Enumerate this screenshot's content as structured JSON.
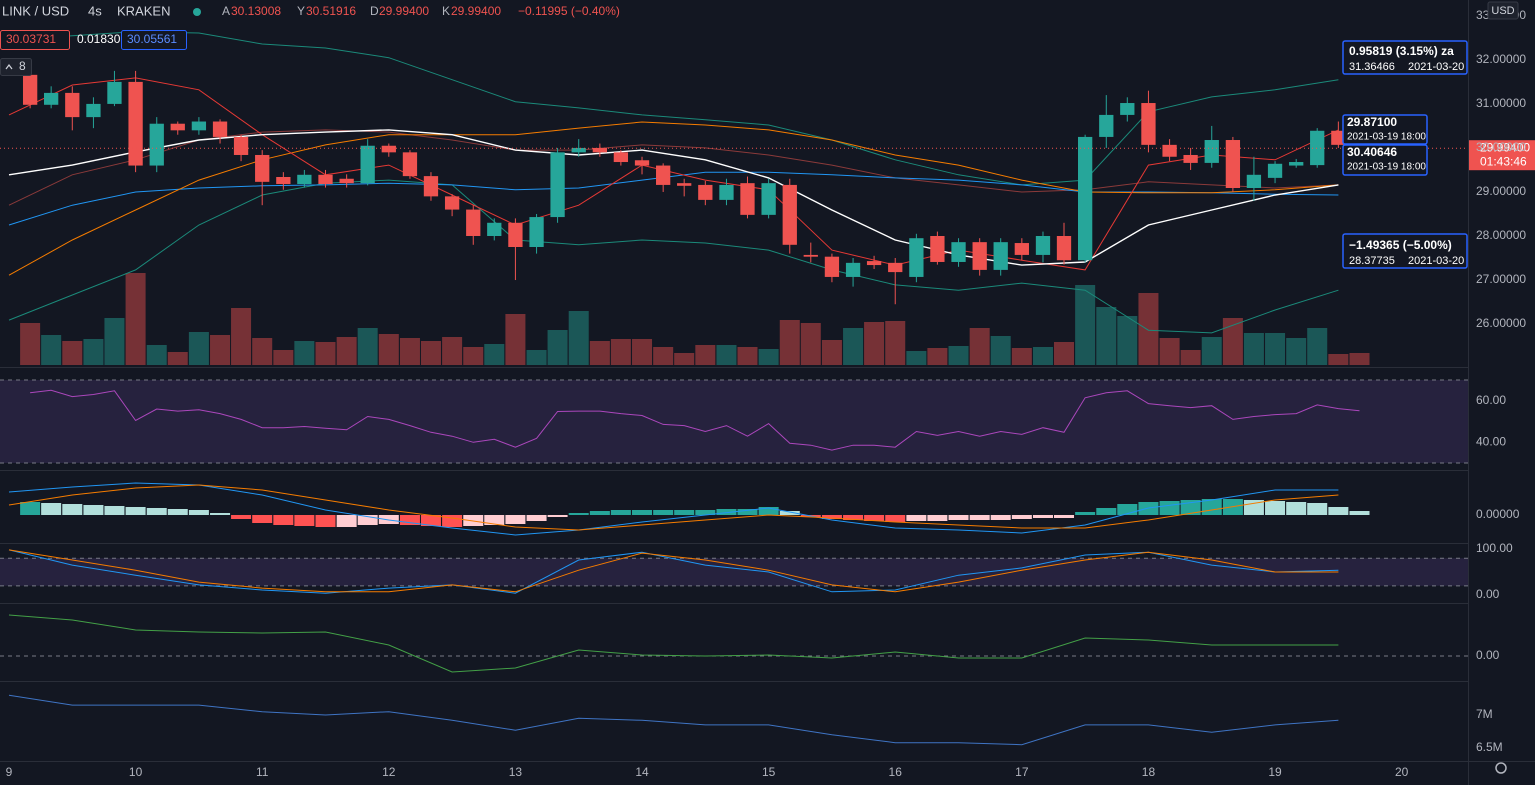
{
  "header": {
    "symbol": "LINK / USD",
    "interval": "4s",
    "exchange": "KRAKEN",
    "ohlc": [
      {
        "key": "A",
        "value": "30.13008"
      },
      {
        "key": "Y",
        "value": "30.51916"
      },
      {
        "key": "D",
        "value": "29.99400"
      },
      {
        "key": "K",
        "value": "29.99400"
      }
    ],
    "change": "−0.11995 (−0.40%)",
    "indicator": [
      "30.03731",
      "0.01830",
      "30.05561"
    ],
    "count": "8",
    "currency": "USD"
  },
  "measures": [
    {
      "lines": [
        "0.95819 (3.15%) za",
        "31.36466",
        "2021-03-20"
      ]
    },
    {
      "lines": [
        "29.87100",
        "2021-03-19 18:00"
      ]
    },
    {
      "lines": [
        "30.40646",
        "2021-03-19 18:00"
      ]
    },
    {
      "lines": [
        "−1.49365 (−5.00%)",
        "28.37735",
        "2021-03-20"
      ]
    }
  ],
  "chart_data": [
    {
      "type": "candlestick",
      "x": [
        9.167,
        9.333,
        9.5,
        9.667,
        9.833,
        10,
        10.167,
        10.333,
        10.5,
        10.667,
        10.833,
        11,
        11.167,
        11.333,
        11.5,
        11.667,
        11.833,
        12,
        12.167,
        12.333,
        12.5,
        12.667,
        12.833,
        13,
        13.167,
        13.333,
        13.5,
        13.667,
        13.833,
        14,
        14.167,
        14.333,
        14.5,
        14.667,
        14.833,
        15,
        15.167,
        15.333,
        15.5,
        15.667,
        15.833,
        16,
        16.167,
        16.333,
        16.5,
        16.667,
        16.833,
        17,
        17.167,
        17.333,
        17.5,
        17.667,
        17.833,
        18,
        18.167,
        18.333,
        18.5,
        18.667,
        18.833,
        19,
        19.167,
        19.333,
        19.5,
        19.667
      ],
      "open": [
        31.66,
        30.98,
        31.25,
        30.7,
        31.0,
        31.5,
        29.6,
        30.55,
        30.4,
        30.6,
        30.25,
        29.84,
        29.34,
        29.18,
        29.39,
        29.3,
        29.2,
        30.05,
        29.9,
        29.36,
        28.9,
        28.6,
        28.0,
        28.3,
        27.75,
        28.43,
        29.9,
        30.0,
        29.9,
        29.72,
        29.6,
        29.2,
        29.16,
        28.82,
        29.2,
        28.48,
        29.16,
        27.57,
        27.53,
        27.07,
        27.43,
        27.39,
        27.07,
        28.0,
        27.41,
        27.86,
        27.23,
        27.84,
        27.57,
        28.0,
        27.45,
        30.25,
        30.75,
        31.02,
        30.07,
        29.84,
        29.66,
        30.18,
        29.09,
        29.32,
        29.6,
        29.61,
        30.39,
        30.07
      ],
      "high": [
        31.8,
        31.4,
        31.4,
        31.15,
        31.75,
        31.75,
        30.7,
        30.6,
        30.7,
        30.65,
        30.3,
        29.95,
        29.45,
        29.5,
        29.5,
        29.4,
        30.2,
        30.1,
        29.95,
        29.45,
        28.95,
        28.7,
        28.4,
        28.4,
        28.5,
        30.0,
        30.2,
        30.1,
        29.95,
        29.8,
        29.65,
        29.3,
        29.25,
        29.3,
        29.35,
        29.3,
        29.3,
        27.85,
        27.6,
        27.5,
        27.55,
        27.5,
        28.05,
        28.1,
        27.95,
        27.95,
        27.95,
        27.95,
        28.1,
        28.3,
        30.3,
        31.2,
        31.15,
        31.3,
        30.2,
        30.0,
        30.5,
        30.25,
        29.8,
        29.7,
        29.75,
        30.45,
        30.6,
        30.15
      ],
      "low": [
        30.9,
        30.9,
        30.4,
        30.45,
        30.95,
        29.45,
        29.45,
        30.3,
        30.3,
        30.1,
        29.7,
        28.7,
        29.05,
        29.1,
        29.1,
        29.1,
        29.15,
        29.8,
        29.3,
        28.8,
        28.45,
        27.8,
        27.9,
        27.0,
        27.6,
        28.3,
        29.8,
        29.8,
        29.6,
        29.4,
        29.0,
        28.9,
        28.7,
        28.7,
        28.4,
        28.4,
        27.6,
        27.4,
        26.95,
        26.85,
        27.25,
        26.45,
        26.95,
        27.35,
        27.3,
        27.1,
        27.1,
        27.45,
        27.4,
        27.35,
        27.4,
        30.0,
        30.6,
        29.9,
        29.7,
        29.5,
        29.55,
        29.0,
        28.8,
        29.2,
        29.55,
        29.55,
        30.0,
        29.9
      ],
      "close": [
        30.98,
        31.25,
        30.7,
        31.0,
        31.5,
        29.6,
        30.55,
        30.4,
        30.6,
        30.25,
        29.84,
        29.23,
        29.18,
        29.39,
        29.18,
        29.2,
        30.05,
        29.9,
        29.36,
        28.9,
        28.6,
        28.0,
        28.3,
        27.75,
        28.43,
        29.9,
        30.0,
        29.9,
        29.68,
        29.6,
        29.16,
        29.14,
        28.82,
        29.16,
        28.48,
        29.2,
        27.8,
        27.53,
        27.07,
        27.39,
        27.34,
        27.18,
        27.95,
        27.41,
        27.86,
        27.23,
        27.86,
        27.57,
        28.0,
        27.45,
        30.25,
        30.75,
        31.02,
        30.07,
        29.8,
        29.66,
        30.18,
        29.09,
        29.39,
        29.64,
        29.68,
        30.39,
        30.07,
        29.994
      ],
      "colors": {
        "up": "#26a69a",
        "down": "#ef5350"
      },
      "volume": {
        "values": [
          42,
          30,
          24,
          26,
          47,
          92,
          20,
          13,
          33,
          30,
          57,
          27,
          15,
          24,
          23,
          28,
          37,
          31,
          27,
          24,
          28,
          18,
          21,
          51,
          15,
          35,
          54,
          24,
          26,
          26,
          18,
          12,
          20,
          20,
          18,
          16,
          45,
          42,
          25,
          37,
          43,
          44,
          14,
          17,
          19,
          37,
          29,
          17,
          18,
          23,
          80,
          58,
          49,
          72,
          27,
          15,
          28,
          47,
          32,
          32,
          27,
          37,
          11,
          12
        ],
        "ylim": [
          0,
          365
        ]
      },
      "overlay": {
        "x": [
          9,
          9.5,
          10,
          10.5,
          11,
          11.5,
          12,
          12.5,
          13,
          13.5,
          14,
          14.5,
          15,
          15.5,
          16,
          16.5,
          17,
          17.5,
          18,
          18.5,
          19,
          19.5
        ],
        "series": [
          {
            "color": "#1b8a7a",
            "values": [
              32.45,
              32.55,
              32.64,
              32.61,
              32.36,
              32.27,
              32.05,
              31.55,
              31.05,
              30.91,
              30.75,
              30.64,
              30.52,
              30.18,
              29.73,
              29.39,
              29.16,
              29.27,
              30.82,
              31.16,
              31.32,
              31.55
            ]
          },
          {
            "color": "#1b8a7a",
            "values": [
              26.09,
              26.66,
              27.23,
              28.25,
              28.93,
              29.2,
              29.27,
              29.16,
              27.91,
              27.8,
              27.91,
              27.84,
              27.68,
              27.23,
              26.89,
              26.77,
              26.93,
              26.77,
              25.86,
              25.8,
              26.32,
              26.77
            ]
          },
          {
            "color": "#8b3a3a",
            "values": [
              28.7,
              29.39,
              29.73,
              30.18,
              30.36,
              30.41,
              30.36,
              30.18,
              29.95,
              29.95,
              30.07,
              30.0,
              29.84,
              29.61,
              29.32,
              29.16,
              29.0,
              29.05,
              29.23,
              29.16,
              29.09,
              29.16
            ]
          },
          {
            "color": "#2196f3",
            "values": [
              28.25,
              28.7,
              29.0,
              29.09,
              29.14,
              29.16,
              29.2,
              29.16,
              29.05,
              29.09,
              29.27,
              29.45,
              29.45,
              29.39,
              29.32,
              29.27,
              29.16,
              29.0,
              29.0,
              28.98,
              28.95,
              28.93
            ]
          },
          {
            "color": "#f57c00",
            "values": [
              27.11,
              27.91,
              28.59,
              29.27,
              29.73,
              30.07,
              30.3,
              30.3,
              30.3,
              30.45,
              30.59,
              30.52,
              30.41,
              30.18,
              29.84,
              29.61,
              29.27,
              29.0,
              28.98,
              28.98,
              29.05,
              29.16
            ]
          },
          {
            "color": "#e53935",
            "values": [
              30.75,
              31.43,
              31.59,
              31.32,
              30.3,
              29.39,
              29.61,
              28.93,
              28.25,
              28.7,
              29.61,
              29.27,
              29.05,
              27.68,
              27.34,
              27.68,
              27.45,
              27.23,
              29.61,
              29.84,
              29.73,
              30.41
            ]
          },
          {
            "color": "#ffffff",
            "values": [
              29.39,
              29.61,
              29.91,
              30.18,
              30.3,
              30.36,
              30.41,
              30.3,
              29.95,
              29.84,
              29.95,
              29.73,
              29.32,
              28.59,
              27.91,
              27.57,
              27.34,
              27.41,
              28.25,
              28.59,
              28.93,
              29.16
            ]
          }
        ]
      },
      "current": {
        "value": 29.994,
        "label": "29.99400",
        "countdown": "01:43:46",
        "color": "#ef5350"
      },
      "xlim": [
        8.929,
        20.524
      ],
      "xticks": [
        9,
        10,
        11,
        12,
        13,
        14,
        15,
        16,
        17,
        18,
        19,
        20
      ],
      "ylim": [
        25.07,
        33.36
      ],
      "yticks": [
        {
          "value": 26,
          "label": "26.00000"
        },
        {
          "value": 27,
          "label": "27.00000"
        },
        {
          "value": 28,
          "label": "28.00000"
        },
        {
          "value": 29,
          "label": "29.00000"
        },
        {
          "value": 30,
          "label": "30.00000"
        },
        {
          "value": 31,
          "label": "31.00000"
        },
        {
          "value": 32,
          "label": "32.00000"
        },
        {
          "value": 33,
          "label": "33.00000"
        }
      ]
    },
    {
      "type": "line",
      "series": [
        {
          "color": "#ab47bc",
          "values": [
            63.8,
            65,
            62,
            63,
            64.8,
            50.5,
            56,
            55,
            55.7,
            53.8,
            51,
            47,
            47,
            47.6,
            46.7,
            46,
            52.4,
            51,
            48,
            44.8,
            42.9,
            40,
            41.4,
            37.6,
            41.9,
            54.8,
            55,
            55,
            53.8,
            52.9,
            48.6,
            48,
            45.2,
            48,
            42.9,
            49,
            39.5,
            38.6,
            36.2,
            38.6,
            38.6,
            37.6,
            45.2,
            43.3,
            45.2,
            42.9,
            45.2,
            43.8,
            47,
            44.8,
            61.4,
            63.8,
            64.8,
            58.6,
            57.6,
            56.7,
            57.6,
            51,
            52.4,
            53.3,
            53.8,
            58,
            56.2,
            55.2
          ]
        }
      ],
      "bands": [
        30,
        70
      ],
      "band_color": "#7e57c2",
      "ylim": [
        27.6,
        74.8
      ],
      "yticks": [
        {
          "value": 40,
          "label": "40.00"
        },
        {
          "value": 60,
          "label": "60.00"
        }
      ]
    },
    {
      "type": "macd",
      "histogram": {
        "values": [
          13,
          12,
          11,
          10,
          9,
          8,
          7,
          6,
          5,
          2,
          -4,
          -8,
          -10,
          -11,
          -12,
          -12,
          -10,
          -9,
          -10,
          -11,
          -12,
          -11,
          -10,
          -9,
          -6,
          -2,
          2,
          4,
          5,
          5,
          5,
          5,
          5,
          6,
          6,
          8,
          4,
          -2,
          -4,
          -5,
          -6,
          -7,
          -6,
          -6,
          -5,
          -5,
          -5,
          -4,
          -3,
          -3,
          3,
          7,
          11,
          13,
          14,
          15,
          16,
          16,
          15,
          14,
          13,
          12,
          8,
          4
        ],
        "colors": [
          "#26a69a",
          "#b2dfdb",
          "#ff5252",
          "#ffcdd2"
        ]
      },
      "x": [
        9,
        9.5,
        10,
        10.5,
        11,
        11.5,
        12,
        12.5,
        13,
        13.5,
        14,
        14.5,
        15,
        15.5,
        16,
        16.5,
        17,
        17.5,
        18,
        18.5,
        19,
        19.5
      ],
      "series": [
        {
          "color": "#2196f3",
          "values": [
            23,
            28,
            32,
            30,
            20,
            5,
            -5,
            -13,
            -20,
            -15,
            -7,
            0,
            7,
            -5,
            -13,
            -15,
            -18,
            -10,
            7,
            15,
            25,
            25
          ]
        },
        {
          "color": "#f57c00",
          "values": [
            10,
            20,
            27,
            30,
            25,
            15,
            5,
            -3,
            -12,
            -15,
            -10,
            -5,
            0,
            -3,
            -7,
            -10,
            -13,
            -13,
            -5,
            5,
            15,
            20
          ]
        }
      ],
      "ylim": [
        -26,
        43
      ],
      "yticks": [
        {
          "value": 0,
          "label": "0.00000"
        }
      ]
    },
    {
      "type": "line",
      "x": [
        9,
        9.5,
        10,
        10.5,
        11,
        11.5,
        12,
        12.5,
        13,
        13.5,
        14,
        14.5,
        15,
        15.5,
        16,
        16.5,
        17,
        17.5,
        18,
        18.5,
        19,
        19.5
      ],
      "series": [
        {
          "color": "#2196f3",
          "values": [
            98,
            65,
            43,
            22,
            11,
            4,
            15,
            22,
            4,
            76,
            93,
            65,
            50,
            7,
            11,
            43,
            59,
            87,
            93,
            65,
            50,
            54
          ]
        },
        {
          "color": "#f57c00",
          "values": [
            98,
            76,
            54,
            28,
            15,
            7,
            7,
            22,
            7,
            54,
            91,
            76,
            54,
            22,
            7,
            28,
            54,
            76,
            93,
            76,
            50,
            50
          ]
        }
      ],
      "bands": [
        20,
        80
      ],
      "band_color": "#7e57c2",
      "ylim": [
        -13,
        108.7
      ],
      "yticks": [
        {
          "value": 0,
          "label": "0.00"
        },
        {
          "value": 100,
          "label": "100.00"
        }
      ]
    },
    {
      "type": "line",
      "x": [
        9,
        9.5,
        10,
        10.5,
        11,
        11.5,
        12,
        12.5,
        13,
        13.5,
        14,
        14.5,
        15,
        15.5,
        16,
        16.5,
        17,
        17.5,
        18,
        18.5,
        19,
        19.5
      ],
      "series": [
        {
          "color": "#43a047",
          "values": [
            41,
            36,
            26,
            24,
            23,
            24,
            11,
            -16,
            -12,
            6,
            1,
            0,
            1,
            -2,
            4,
            -2,
            -2,
            18,
            16,
            11,
            11,
            11
          ]
        }
      ],
      "grid": true,
      "ylim": [
        -24,
        51
      ],
      "yticks": [
        {
          "value": 0,
          "label": "0.00"
        }
      ]
    },
    {
      "type": "line",
      "x": [
        9,
        9.5,
        10,
        10.5,
        11,
        11.5,
        12,
        12.5,
        13,
        13.5,
        14,
        14.5,
        15,
        15.5,
        16,
        16.5,
        17,
        17.5,
        18,
        18.5,
        19,
        19.5
      ],
      "series": [
        {
          "color": "#3f74c4",
          "values": [
            7300000,
            7150000,
            7150000,
            7150000,
            7050000,
            7000000,
            7050000,
            6920000,
            6770000,
            6950000,
            6920000,
            6850000,
            6850000,
            6700000,
            6580000,
            6580000,
            6550000,
            6850000,
            6850000,
            6740000,
            6850000,
            6920000
          ]
        }
      ],
      "ylim": [
        6318000,
        7485000
      ],
      "yticks": [
        {
          "value": 7000000,
          "label": "7M"
        },
        {
          "value": 6500000,
          "label": "6.5M"
        }
      ]
    }
  ]
}
